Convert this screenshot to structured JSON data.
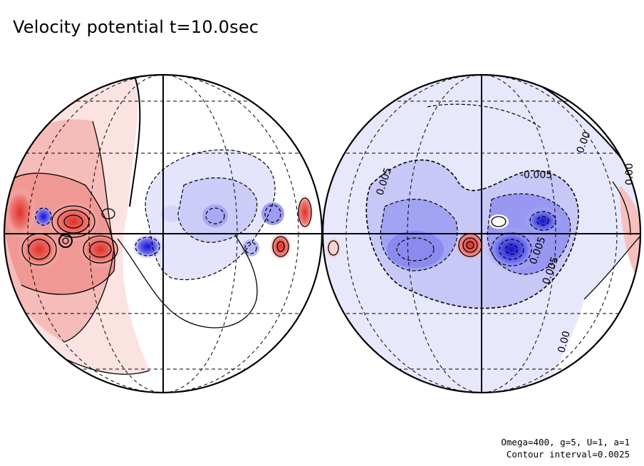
{
  "title": "Velocity potential t=10.0sec",
  "footer": {
    "line1": "Omega=400, g=5, U=1, a=1",
    "line2": "Contour interval=0.0025"
  },
  "contour_labels": {
    "l1": "0.005",
    "l2": "-0.005",
    "l3": "0.00",
    "l4": "0.00",
    "l5": "0.005",
    "l6": "0.005",
    "l7": "0.00"
  },
  "colors": {
    "positive": "#e0302a",
    "negative": "#1515d0",
    "line": "#000000"
  }
}
